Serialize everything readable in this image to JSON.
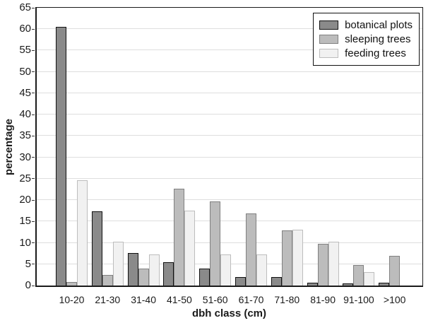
{
  "chart_data": {
    "type": "bar",
    "title": "",
    "xlabel": "dbh class (cm)",
    "ylabel": "percentage",
    "ylim": [
      0,
      65
    ],
    "ytick_step": 5,
    "yticks": [
      0,
      5,
      10,
      15,
      20,
      25,
      30,
      35,
      40,
      45,
      50,
      55,
      60,
      65
    ],
    "grid": true,
    "legend_position": "top-right",
    "categories": [
      "10-20",
      "21-30",
      "31-40",
      "41-50",
      "51-60",
      "61-70",
      "71-80",
      "81-90",
      "91-100",
      ">100"
    ],
    "series": [
      {
        "name": "botanical plots",
        "fill": "#8a8a8a",
        "stroke": "#111111",
        "values": [
          60.6,
          17.3,
          7.6,
          5.5,
          3.9,
          2.0,
          2.0,
          0.7,
          0.5,
          0.6
        ]
      },
      {
        "name": "sleeping trees",
        "fill": "#bcbcbc",
        "stroke": "#808080",
        "values": [
          0.9,
          2.5,
          4.0,
          22.6,
          19.6,
          16.8,
          12.9,
          9.8,
          4.8,
          6.9
        ]
      },
      {
        "name": "feeding trees",
        "fill": "#f1f1f1",
        "stroke": "#bdbdbd",
        "values": [
          24.6,
          10.2,
          7.3,
          17.5,
          7.3,
          7.3,
          13.1,
          10.2,
          3.1,
          0
        ]
      }
    ]
  },
  "colors": {
    "background": "#ffffff",
    "frame": "#1a1a1a",
    "gridline": "#dedede",
    "text": "#1a1a1a"
  }
}
